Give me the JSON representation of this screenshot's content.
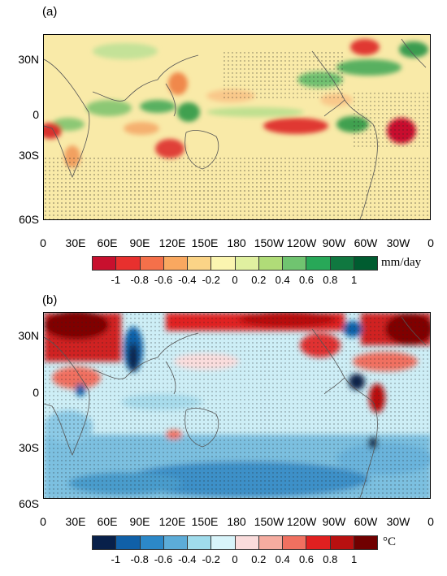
{
  "panels": [
    {
      "label": "(a)",
      "unit": "mm/day",
      "lat_labels": [
        "30N",
        "0",
        "30S",
        "60S"
      ],
      "lon_labels": [
        "0",
        "30E",
        "60E",
        "90E",
        "120E",
        "150E",
        "180",
        "150W",
        "120W",
        "90W",
        "60W",
        "30W",
        "0"
      ],
      "colorbar_labels": [
        "-1",
        "-0.8",
        "-0.6",
        "-0.4",
        "-0.2",
        "0",
        "0.2",
        "0.4",
        "0.6",
        "0.8",
        "1"
      ],
      "colors": [
        "#c8102e",
        "#e8302e",
        "#f5704a",
        "#f9a860",
        "#fbd487",
        "#fbf5b0",
        "#e0f0a0",
        "#b0dc78",
        "#70c470",
        "#28a858",
        "#107840",
        "#005c30"
      ]
    },
    {
      "label": "(b)",
      "unit": "°C",
      "lat_labels": [
        "30N",
        "0",
        "30S",
        "60S"
      ],
      "lon_labels": [
        "0",
        "30E",
        "60E",
        "90E",
        "120E",
        "150E",
        "180",
        "150W",
        "120W",
        "90W",
        "60W",
        "30W",
        "0"
      ],
      "colorbar_labels": [
        "-1",
        "-0.8",
        "-0.6",
        "-0.4",
        "-0.2",
        "0",
        "0.2",
        "0.4",
        "0.6",
        "0.8",
        "1"
      ],
      "colors": [
        "#08204a",
        "#1060a8",
        "#2c88c8",
        "#5cacd8",
        "#a0dcec",
        "#d8f4fa",
        "#fadcdc",
        "#f5aca0",
        "#f07060",
        "#e02020",
        "#b81010",
        "#700000"
      ]
    }
  ]
}
